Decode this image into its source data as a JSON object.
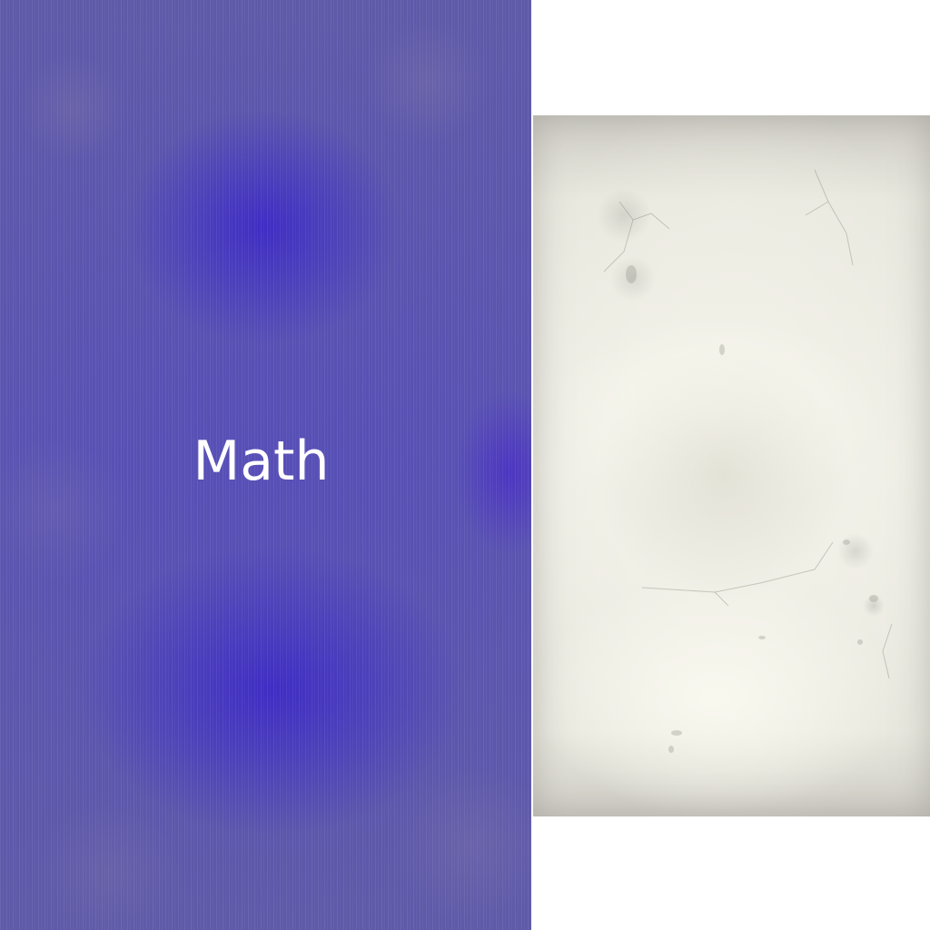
{
  "cover": {
    "title": "Math",
    "color": "#5a52b4",
    "text_color": "#ffffff"
  },
  "page": {
    "color": "#ecebe3"
  }
}
